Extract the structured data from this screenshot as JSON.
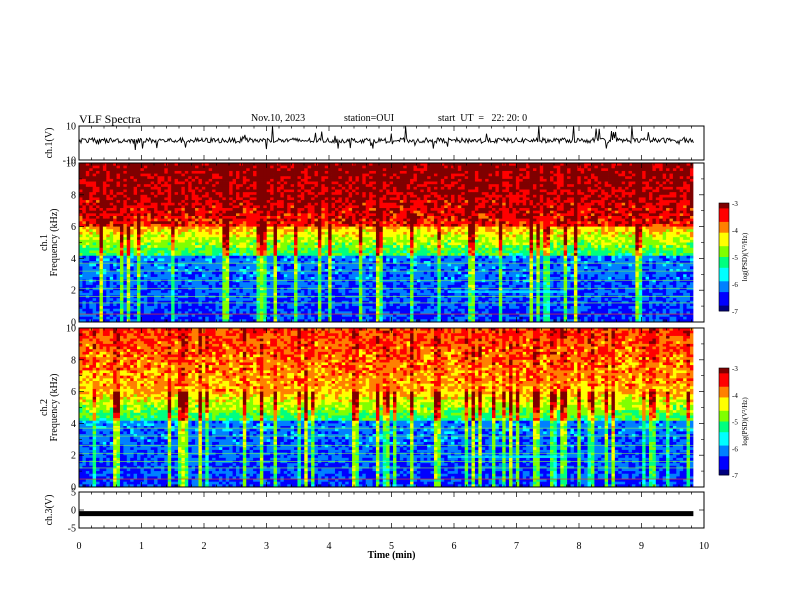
{
  "header": {
    "title": "VLF Spectra",
    "date": "Nov.10, 2023",
    "station": "station=OUI",
    "start": "start  UT  =   22: 20: 0"
  },
  "chart_data": {
    "type": "heatmap",
    "x_axis": {
      "label": "Time  (min)",
      "range": [
        0,
        10
      ],
      "ticks": [
        "0",
        "1",
        "2",
        "3",
        "4",
        "5",
        "6",
        "7",
        "8",
        "9",
        "10"
      ]
    },
    "panels": [
      {
        "name": "ch.1(V)",
        "kind": "waveform",
        "ylim": [
          -10,
          10
        ],
        "ticks": [
          "10",
          "-10"
        ]
      },
      {
        "name": "ch.1 spectrogram",
        "ylabel": "ch.1\nFrequency (kHz)",
        "ylabel_lines": [
          "ch.1",
          "Frequency (kHz)"
        ],
        "ylim": [
          0,
          10
        ],
        "ticks": [
          "0",
          "2",
          "4",
          "6",
          "8",
          "10"
        ]
      },
      {
        "name": "ch.2 spectrogram",
        "ylabel": "ch.2\nFrequency (kHz)",
        "ylabel_lines": [
          "ch.2",
          "Frequency (kHz)"
        ],
        "ylim": [
          0,
          10
        ],
        "ticks": [
          "0",
          "2",
          "4",
          "6",
          "8",
          "10"
        ]
      },
      {
        "name": "ch.3(V)",
        "kind": "waveform",
        "ylim": [
          -5,
          5
        ],
        "ticks": [
          "5",
          "0",
          "-5"
        ],
        "constant_level": -1
      }
    ],
    "colorbar": {
      "label": "log(PSD)(V²/Hz)",
      "range": [
        -7,
        -3
      ],
      "ticks": [
        "-3",
        "-4",
        "-5",
        "-6",
        "-7"
      ]
    },
    "colormap": [
      "#00007f",
      "#0000ff",
      "#0080ff",
      "#00ffff",
      "#00ff80",
      "#80ff00",
      "#ffff00",
      "#ff8000",
      "#ff0000",
      "#7f0000"
    ],
    "data_end_min": 9.83
  }
}
